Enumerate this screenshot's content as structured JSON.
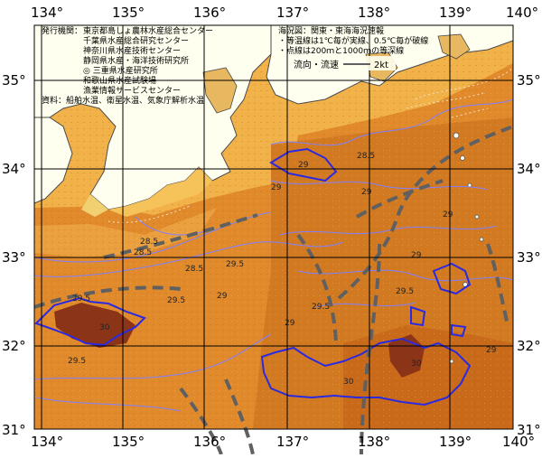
{
  "map": {
    "longitude_labels": [
      "134°",
      "135°",
      "136°",
      "137°",
      "138°",
      "139°",
      "140°"
    ],
    "latitude_labels": [
      "35°",
      "34°",
      "33°",
      "32°",
      "31°"
    ],
    "issuers_heading": "発行機関：",
    "issuers": [
      "東京都島しょ農林水産総合センター",
      "千葉県水産総合研究センター",
      "神奈川県水産技術センター",
      "静岡県水産・海洋技術研究所",
      "◎ 三重県水産研究所",
      "和歌山県水産試験場",
      "漁業情報サービスセンター"
    ],
    "source_note": "資料：船舶水温、衛星水温、気象庁解析水温",
    "info_title": "海況図：関東・東海海況速報",
    "info_lines": [
      "・等温線は1℃毎が実線、0.5℃毎が破線",
      "・点線は200ｍと1000ｍの等深線"
    ],
    "current_legend": "流向・流速",
    "current_speed": "2kt",
    "isotherm_labels": [
      "28.5",
      "29",
      "29.5",
      "30"
    ],
    "colors": {
      "land": "#fffff0",
      "sea_light": "#f2b24a",
      "sea_mid": "#e08a2c",
      "sea_dark": "#c86a1a",
      "sea_hot": "#8c3418",
      "isotherm_blue": "#2a2ae0",
      "isotherm_thin": "#8080ff",
      "current_arrow": "#606060",
      "grid": "#000000"
    }
  }
}
